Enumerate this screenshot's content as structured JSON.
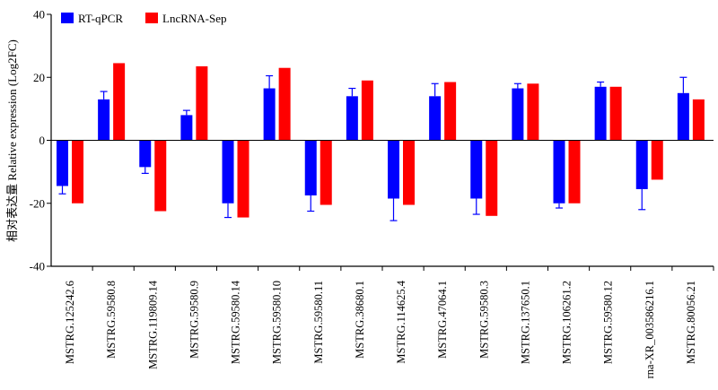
{
  "chart_data": {
    "type": "bar",
    "title": "",
    "xlabel": "",
    "ylabel": "相对表达量 Relative expression (Log2FC)",
    "ylim": [
      -40,
      40
    ],
    "yticks": [
      -40,
      -20,
      0,
      20,
      40
    ],
    "grid": false,
    "legend_position": "top-left",
    "categories": [
      "MSTRG.125242.6",
      "MSTRG.59580.8",
      "MSTRG.119809.14",
      "MSTRG.59580.9",
      "MSTRG.59580.14",
      "MSTRG.59580.10",
      "MSTRG.59580.11",
      "MSTRG.38680.1",
      "MSTRG.114625.4",
      "MSTRG.47064.1",
      "MSTRG.59580.3",
      "MSTRG.137650.1",
      "MSTRG.106261.2",
      "MSTRG.59580.12",
      "rna-XR_003586216.1",
      "MSTRG.80056.21"
    ],
    "series": [
      {
        "name": "RT-qPCR",
        "color": "#0000ff",
        "values": [
          -14.5,
          13,
          -8.5,
          8,
          -20,
          16.5,
          -17.5,
          14,
          -18.5,
          14,
          -18.5,
          16.5,
          -20,
          17,
          -15.5,
          15
        ],
        "errors": [
          2.5,
          2.5,
          2,
          1.5,
          4.5,
          4,
          5,
          2.5,
          7,
          4,
          5,
          1.5,
          1.5,
          1.5,
          6.5,
          5
        ]
      },
      {
        "name": "LncRNA-Sep",
        "color": "#ff0000",
        "values": [
          -20,
          24.5,
          -22.5,
          23.5,
          -24.5,
          23,
          -20.5,
          19,
          -20.5,
          18.5,
          -24,
          18,
          -20,
          17,
          -12.5,
          13
        ],
        "errors": null
      }
    ]
  }
}
